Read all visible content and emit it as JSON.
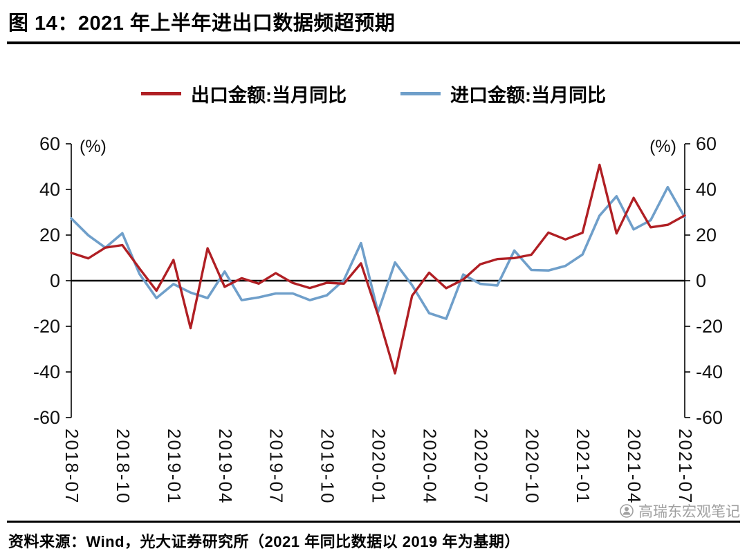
{
  "header": {
    "title": "图 14：2021 年上半年进出口数据频超预期"
  },
  "chart_data": {
    "type": "line",
    "title": "图 14：2021 年上半年进出口数据频超预期",
    "unit_label": "(%)",
    "xlabel": "",
    "ylabel": "(%)",
    "ylim": [
      -60,
      60
    ],
    "y_ticks": [
      60,
      40,
      20,
      0,
      -20,
      -40,
      -60
    ],
    "grid": false,
    "legend_position": "top",
    "x_tick_every": 3,
    "x": [
      "2018-07",
      "2018-08",
      "2018-09",
      "2018-10",
      "2018-11",
      "2018-12",
      "2019-01",
      "2019-02",
      "2019-03",
      "2019-04",
      "2019-05",
      "2019-06",
      "2019-07",
      "2019-08",
      "2019-09",
      "2019-10",
      "2019-11",
      "2019-12",
      "2020-01",
      "2020-02",
      "2020-03",
      "2020-04",
      "2020-05",
      "2020-06",
      "2020-07",
      "2020-08",
      "2020-09",
      "2020-10",
      "2020-11",
      "2020-12",
      "2021-01",
      "2021-02",
      "2021-03",
      "2021-04",
      "2021-05",
      "2021-06",
      "2021-07"
    ],
    "series": [
      {
        "name": "出口金额:当月同比",
        "color": "#b01f24",
        "values": [
          12.2,
          9.8,
          14.5,
          15.6,
          5.4,
          -4.4,
          9.1,
          -20.8,
          14.2,
          -2.7,
          1.1,
          -1.3,
          3.3,
          -1.0,
          -3.2,
          -0.9,
          -1.3,
          7.6,
          -15.0,
          -40.6,
          -6.6,
          3.5,
          -3.3,
          0.5,
          7.2,
          9.5,
          9.9,
          11.4,
          21.1,
          18.1,
          21.0,
          50.8,
          20.7,
          36.3,
          23.4,
          24.5,
          28.6
        ]
      },
      {
        "name": "进口金额:当月同比",
        "color": "#6f9fca",
        "values": [
          27.3,
          19.9,
          14.5,
          20.8,
          3.0,
          -7.6,
          -1.5,
          -5.2,
          -7.6,
          4.0,
          -8.5,
          -7.3,
          -5.6,
          -5.6,
          -8.5,
          -6.4,
          0.3,
          16.5,
          -13.8,
          8.0,
          -2.0,
          -14.2,
          -16.7,
          2.7,
          -1.4,
          -2.1,
          13.2,
          4.7,
          4.5,
          6.5,
          11.5,
          28.5,
          37.0,
          22.5,
          26.5,
          41.0,
          27.8
        ]
      }
    ]
  },
  "footer": {
    "source": "资料来源：Wind，光大证券研究所（2021 年同比数据以 2019 年为基期）"
  },
  "watermark": {
    "text": "高瑞东宏观笔记"
  }
}
